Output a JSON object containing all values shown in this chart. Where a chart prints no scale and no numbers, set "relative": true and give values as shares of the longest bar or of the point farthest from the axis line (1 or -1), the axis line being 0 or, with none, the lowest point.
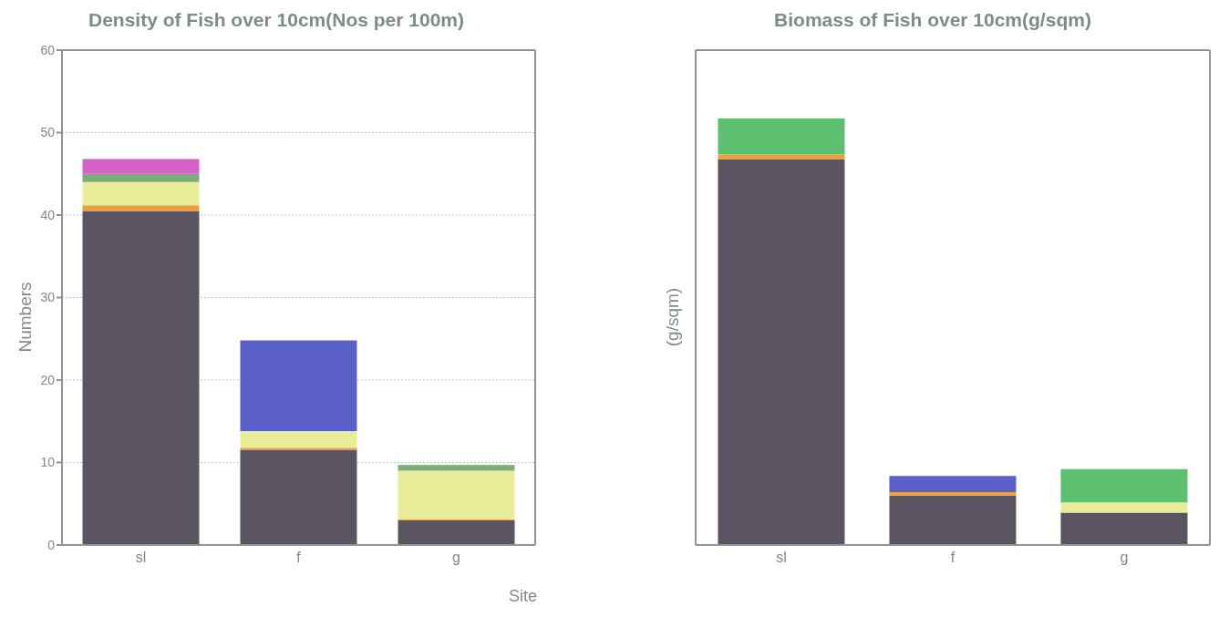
{
  "chart_data": [
    {
      "type": "bar",
      "title": "Density of Fish over 10cm(Nos per 100m)",
      "ylabel": "Numbers",
      "xlabel": "Site",
      "categories": [
        "sl",
        "f",
        "g"
      ],
      "stacked": true,
      "ylim": [
        0,
        60
      ],
      "yticks": [
        0,
        10,
        20,
        30,
        40,
        50,
        60
      ],
      "grid": "y",
      "series": [
        {
          "color": "#5a5560",
          "values": [
            40.5,
            11.5,
            3
          ]
        },
        {
          "color": "#e8a040",
          "values": [
            0.7,
            0.3,
            0.1
          ]
        },
        {
          "color": "#e8ec98",
          "values": [
            2.8,
            2.0,
            5.9
          ]
        },
        {
          "color": "#7aae7a",
          "values": [
            1.0,
            null,
            0.7
          ]
        },
        {
          "color": "#d65fc8",
          "values": [
            1.8,
            null,
            null
          ]
        },
        {
          "color": "#5a60c8",
          "values": [
            null,
            11,
            null
          ]
        }
      ]
    },
    {
      "type": "bar",
      "title": "Biomass of Fish over 10cm(g/sqm)",
      "ylabel": "(g/sqm)",
      "categories": [
        "sl",
        "f",
        "g"
      ],
      "stacked": true,
      "relative": true,
      "grid": "y",
      "series": [
        {
          "color": "#5a5560",
          "values": [
            0.904,
            0.116,
            0.076
          ]
        },
        {
          "color": "#e8a040",
          "values": [
            0.012,
            0.008,
            null
          ]
        },
        {
          "color": "#e8ec98",
          "values": [
            null,
            null,
            0.024
          ]
        },
        {
          "color": "#5a60c8",
          "values": [
            null,
            0.038,
            null
          ]
        },
        {
          "color": "#5cc070",
          "values": [
            0.084,
            null,
            0.078
          ]
        }
      ]
    }
  ]
}
